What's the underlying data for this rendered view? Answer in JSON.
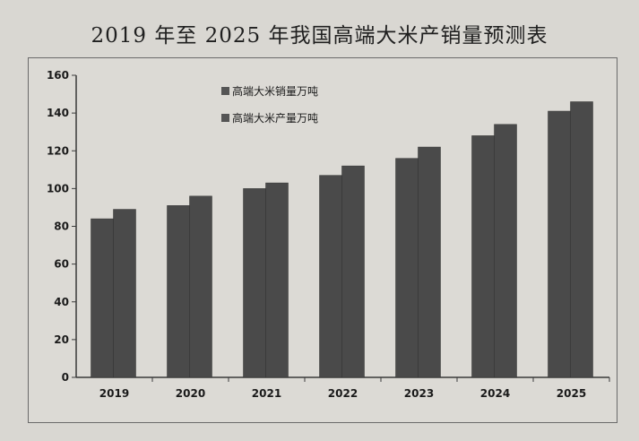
{
  "title": "2019 年至 2025 年我国高端大米产销量预测表",
  "colors": {
    "background": "#d9d7d2",
    "bar": "#4a4a4a",
    "axis": "#3a3a3a",
    "legend_marker": "#555555"
  },
  "chart_data": {
    "type": "bar",
    "categories": [
      "2019",
      "2020",
      "2021",
      "2022",
      "2023",
      "2024",
      "2025"
    ],
    "series": [
      {
        "name": "高端大米销量万吨",
        "values": [
          84,
          91,
          100,
          107,
          116,
          128,
          141
        ]
      },
      {
        "name": "高端大米产量万吨",
        "values": [
          89,
          96,
          103,
          112,
          122,
          134,
          146
        ]
      }
    ],
    "ylim": [
      0,
      160
    ],
    "yticks": [
      0,
      20,
      40,
      60,
      80,
      100,
      120,
      140,
      160
    ],
    "xlabel": "",
    "ylabel": "",
    "grid": false,
    "legend_position": "top-left"
  }
}
